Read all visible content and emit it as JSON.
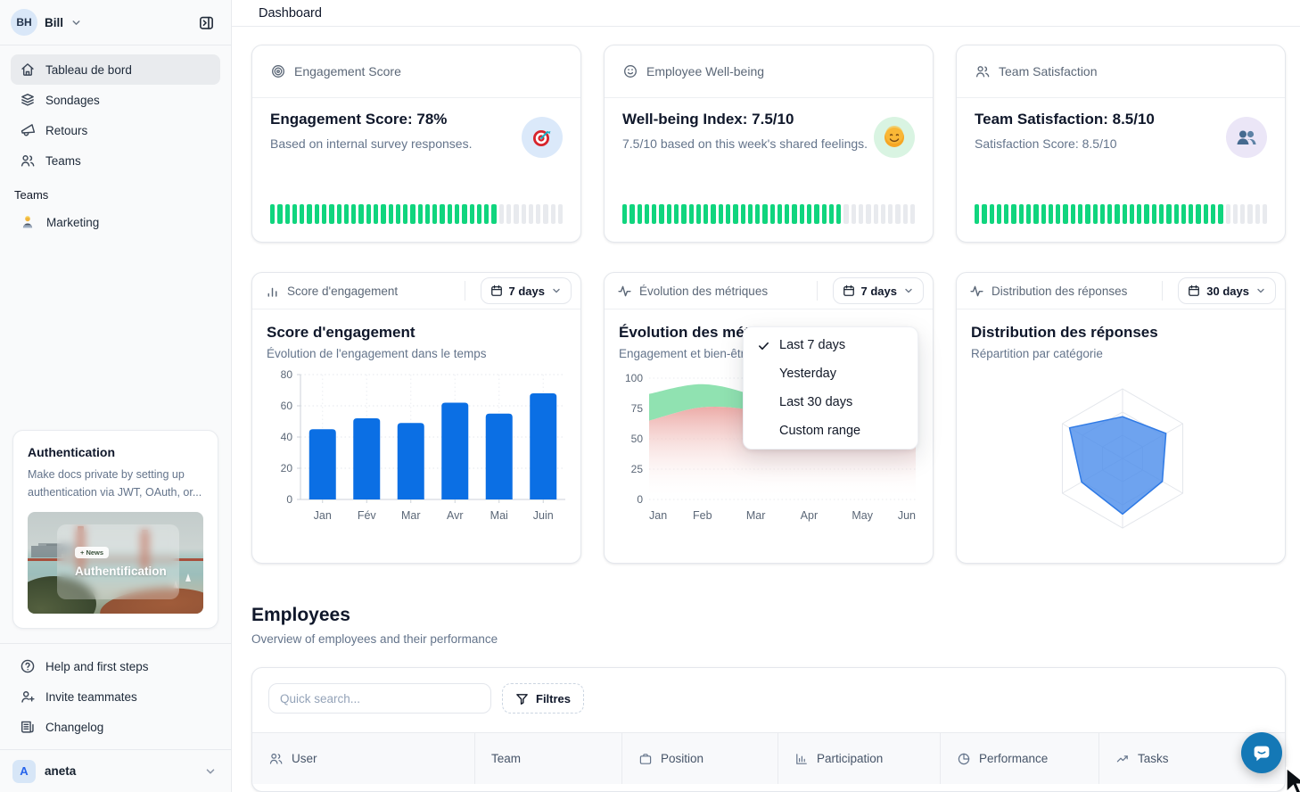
{
  "colors": {
    "accent_blue": "#0b6fe4",
    "progress_green": "#10d57e",
    "area_green": "#8ae0ad",
    "area_pink": "#eba7a3",
    "radar_blue": "#4a8ceb",
    "chat_blue": "#1478b6"
  },
  "sidebar": {
    "workspace": {
      "initials": "BH",
      "name": "Bill"
    },
    "nav": [
      {
        "label": "Tableau de bord",
        "icon": "home",
        "active": true
      },
      {
        "label": "Sondages",
        "icon": "layers",
        "active": false
      },
      {
        "label": "Retours",
        "icon": "megaphone",
        "active": false
      },
      {
        "label": "Teams",
        "icon": "users",
        "active": false
      }
    ],
    "teams_label": "Teams",
    "teams": [
      {
        "label": "Marketing",
        "icon": "technologist-emoji"
      }
    ],
    "promo": {
      "title": "Authentication",
      "description": "Make docs private by setting up authentication via JWT, OAuth, or...",
      "badge": "+ News",
      "image_title": "Authentification"
    },
    "footer": [
      {
        "label": "Help and first steps",
        "icon": "help-circle"
      },
      {
        "label": "Invite teammates",
        "icon": "user-plus"
      },
      {
        "label": "Changelog",
        "icon": "newspaper"
      }
    ],
    "account": {
      "initial": "A",
      "name": "aneta"
    }
  },
  "header": {
    "title": "Dashboard"
  },
  "stat_cards": [
    {
      "header_label": "Engagement Score",
      "header_icon": "target",
      "title": "Engagement Score: 78%",
      "subtitle": "Based on internal survey responses.",
      "emoji_icon": "dart-target",
      "emoji_bg": "#dbe9fa",
      "progress_percent": 78
    },
    {
      "header_label": "Employee Well-being",
      "header_icon": "smile",
      "title": "Well-being Index: 7.5/10",
      "subtitle": "7.5/10 based on this week's shared feelings.",
      "emoji_icon": "smiling-face",
      "emoji_bg": "#d9f4e2",
      "progress_percent": 75
    },
    {
      "header_label": "Team Satisfaction",
      "header_icon": "users",
      "title": "Team Satisfaction: 8.5/10",
      "subtitle": "Satisfaction Score: 8.5/10",
      "emoji_icon": "two-silhouettes",
      "emoji_bg": "#ebe6f7",
      "progress_percent": 85
    }
  ],
  "chart_cards": [
    {
      "header_label": "Score d'engagement",
      "header_icon": "bar-chart",
      "range_label": "7 days"
    },
    {
      "header_label": "Évolution des métriques",
      "header_icon": "activity",
      "range_label": "7 days"
    },
    {
      "header_label": "Distribution des réponses",
      "header_icon": "activity",
      "range_label": "30 days"
    }
  ],
  "range_menu": {
    "items": [
      {
        "label": "Last 7 days",
        "checked": true
      },
      {
        "label": "Yesterday",
        "checked": false
      },
      {
        "label": "Last 30 days",
        "checked": false
      },
      {
        "label": "Custom range",
        "checked": false
      }
    ]
  },
  "chart_data": [
    {
      "type": "bar",
      "title": "Score d'engagement",
      "subtitle": "Évolution de l'engagement dans le temps",
      "categories": [
        "Jan",
        "Fév",
        "Mar",
        "Avr",
        "Mai",
        "Juin"
      ],
      "values": [
        45,
        52,
        49,
        62,
        55,
        68
      ],
      "ylim": [
        0,
        80
      ],
      "yticks": [
        0,
        20,
        40,
        60,
        80
      ],
      "bar_color": "#0b6fe4",
      "grid": "dotted"
    },
    {
      "type": "area",
      "title": "Évolution des métriques",
      "subtitle": "Engagement et bien-être",
      "x": [
        "Jan",
        "Feb",
        "Mar",
        "Apr",
        "May",
        "Jun"
      ],
      "series": [
        {
          "name": "engagement",
          "color": "#8ae0ad",
          "values": [
            87,
            95,
            85,
            64,
            75,
            82
          ]
        },
        {
          "name": "bien-être",
          "color": "#eba7a3",
          "values": [
            65,
            76,
            73,
            60,
            67,
            72
          ]
        }
      ],
      "ylim": [
        0,
        100
      ],
      "yticks": [
        0,
        25,
        50,
        75,
        100
      ],
      "grid": "dotted"
    },
    {
      "type": "radar",
      "title": "Distribution des réponses",
      "subtitle": "Répartition par catégorie",
      "axes": 6,
      "values_pct": [
        60,
        72,
        66,
        80,
        68,
        88
      ],
      "rings": 3,
      "fill_color": "#4a8ceb",
      "stroke_color": "#2f7ae5"
    }
  ],
  "employees": {
    "title": "Employees",
    "subtitle": "Overview of employees and their performance",
    "search_placeholder": "Quick search...",
    "filters_label": "Filtres",
    "columns": [
      {
        "label": "User",
        "icon": "users"
      },
      {
        "label": "Team",
        "icon": null
      },
      {
        "label": "Position",
        "icon": "briefcase"
      },
      {
        "label": "Participation",
        "icon": "bar-chart-axis"
      },
      {
        "label": "Performance",
        "icon": "pie-chart"
      },
      {
        "label": "Tasks",
        "icon": "trend-up"
      }
    ]
  }
}
